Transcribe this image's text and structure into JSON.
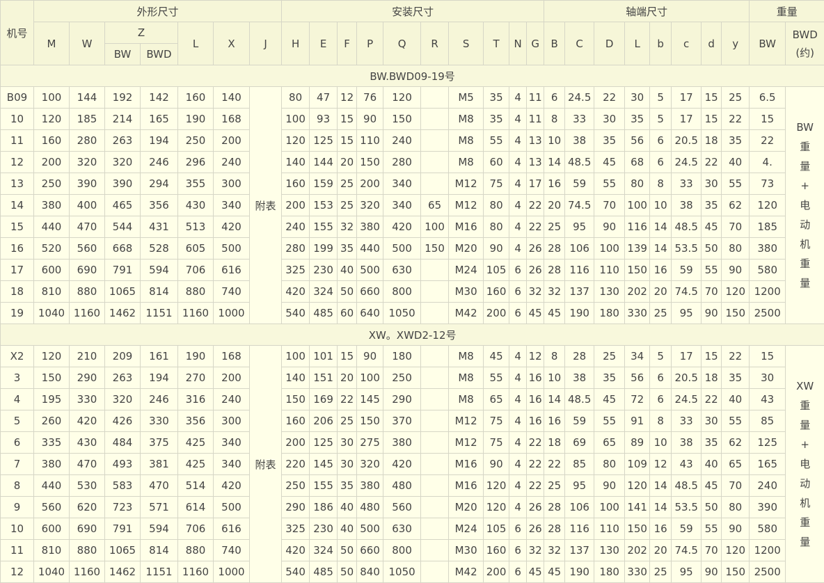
{
  "header": {
    "row1": [
      "机号",
      "外形尺寸",
      "安装尺寸",
      "轴端尺寸",
      "重量"
    ],
    "row2": [
      "M",
      "W",
      "Z",
      "L",
      "X",
      "J",
      "H",
      "E",
      "F",
      "P",
      "Q",
      "R",
      "S",
      "T",
      "N",
      "G",
      "B",
      "C",
      "D",
      "L",
      "b",
      "c",
      "d",
      "y",
      "BW",
      "BWD",
      "(约)"
    ],
    "row3": [
      "BW",
      "BWD"
    ]
  },
  "sections": [
    {
      "title": "BW.BWD09-19号",
      "j": "附表",
      "note": [
        "BW",
        "重",
        "量",
        "+",
        "电",
        "动",
        "机",
        "重",
        "量"
      ],
      "rows": [
        [
          "B09",
          "100",
          "144",
          "192",
          "142",
          "160",
          "140",
          "80",
          "47",
          "12",
          "76",
          "120",
          null,
          "M5",
          "35",
          "4",
          "11",
          "6",
          "24.5",
          "22",
          "30",
          "5",
          "17",
          "15",
          "25",
          "6.5"
        ],
        [
          "10",
          "120",
          "185",
          "214",
          "165",
          "190",
          "168",
          "100",
          "93",
          "15",
          "90",
          "150",
          null,
          "M8",
          "35",
          "4",
          "11",
          "8",
          "33",
          "30",
          "35",
          "5",
          "17",
          "15",
          "22",
          "15"
        ],
        [
          "11",
          "160",
          "280",
          "263",
          "194",
          "250",
          "200",
          "120",
          "125",
          "15",
          "110",
          "240",
          null,
          "M8",
          "55",
          "4",
          "13",
          "10",
          "38",
          "35",
          "56",
          "6",
          "20.5",
          "18",
          "35",
          "22"
        ],
        [
          "12",
          "200",
          "320",
          "320",
          "246",
          "296",
          "240",
          "140",
          "144",
          "20",
          "150",
          "280",
          null,
          "M8",
          "60",
          "4",
          "13",
          "14",
          "48.5",
          "45",
          "68",
          "6",
          "24.5",
          "22",
          "40",
          "4."
        ],
        [
          "13",
          "250",
          "390",
          "390",
          "294",
          "355",
          "300",
          "160",
          "159",
          "25",
          "200",
          "340",
          null,
          "M12",
          "75",
          "4",
          "17",
          "16",
          "59",
          "55",
          "80",
          "8",
          "33",
          "30",
          "55",
          "73"
        ],
        [
          "14",
          "380",
          "400",
          "465",
          "356",
          "430",
          "340",
          "200",
          "153",
          "25",
          "320",
          "340",
          "65",
          "M12",
          "80",
          "4",
          "22",
          "20",
          "74.5",
          "70",
          "100",
          "10",
          "38",
          "35",
          "62",
          "120"
        ],
        [
          "15",
          "440",
          "470",
          "544",
          "431",
          "513",
          "420",
          "240",
          "155",
          "32",
          "380",
          "420",
          "100",
          "M16",
          "80",
          "4",
          "22",
          "25",
          "95",
          "90",
          "116",
          "14",
          "48.5",
          "45",
          "70",
          "185"
        ],
        [
          "16",
          "520",
          "560",
          "668",
          "528",
          "605",
          "500",
          "280",
          "199",
          "35",
          "440",
          "500",
          "150",
          "M20",
          "90",
          "4",
          "26",
          "28",
          "106",
          "100",
          "139",
          "14",
          "53.5",
          "50",
          "80",
          "380"
        ],
        [
          "17",
          "600",
          "690",
          "791",
          "594",
          "706",
          "616",
          "325",
          "230",
          "40",
          "500",
          "630",
          null,
          "M24",
          "105",
          "6",
          "26",
          "28",
          "116",
          "110",
          "150",
          "16",
          "59",
          "55",
          "90",
          "580"
        ],
        [
          "18",
          "810",
          "880",
          "1065",
          "814",
          "880",
          "740",
          "420",
          "324",
          "50",
          "660",
          "800",
          null,
          "M30",
          "160",
          "6",
          "32",
          "32",
          "137",
          "130",
          "202",
          "20",
          "74.5",
          "70",
          "120",
          "1200"
        ],
        [
          "19",
          "1040",
          "1160",
          "1462",
          "1151",
          "1160",
          "1000",
          "540",
          "485",
          "60",
          "640",
          "1050",
          null,
          "M42",
          "200",
          "6",
          "45",
          "45",
          "190",
          "180",
          "330",
          "25",
          "95",
          "90",
          "150",
          "2500"
        ]
      ]
    },
    {
      "title": "XW。XWD2-12号",
      "j": "附表",
      "note": [
        "XW",
        "重",
        "量",
        "+",
        "电",
        "动",
        "机",
        "重",
        "量"
      ],
      "rows": [
        [
          "X2",
          "120",
          "210",
          "209",
          "161",
          "190",
          "168",
          "100",
          "101",
          "15",
          "90",
          "180",
          null,
          "M8",
          "45",
          "4",
          "12",
          "8",
          "28",
          "25",
          "34",
          "5",
          "17",
          "15",
          "22",
          "15"
        ],
        [
          "3",
          "150",
          "290",
          "263",
          "194",
          "270",
          "200",
          "140",
          "151",
          "20",
          "100",
          "250",
          null,
          "M8",
          "55",
          "4",
          "16",
          "10",
          "38",
          "35",
          "56",
          "6",
          "20.5",
          "18",
          "35",
          "30"
        ],
        [
          "4",
          "195",
          "330",
          "320",
          "246",
          "316",
          "240",
          "150",
          "169",
          "22",
          "145",
          "290",
          null,
          "M8",
          "65",
          "4",
          "16",
          "14",
          "48.5",
          "45",
          "72",
          "6",
          "24.5",
          "22",
          "40",
          "43"
        ],
        [
          "5",
          "260",
          "420",
          "426",
          "330",
          "356",
          "300",
          "160",
          "206",
          "25",
          "150",
          "370",
          null,
          "M12",
          "75",
          "4",
          "16",
          "16",
          "59",
          "55",
          "91",
          "8",
          "33",
          "30",
          "55",
          "85"
        ],
        [
          "6",
          "335",
          "430",
          "484",
          "375",
          "425",
          "340",
          "200",
          "125",
          "30",
          "275",
          "380",
          null,
          "M12",
          "75",
          "4",
          "22",
          "18",
          "69",
          "65",
          "89",
          "10",
          "38",
          "35",
          "62",
          "125"
        ],
        [
          "7",
          "380",
          "470",
          "493",
          "381",
          "425",
          "340",
          "220",
          "145",
          "30",
          "320",
          "420",
          null,
          "M16",
          "90",
          "4",
          "22",
          "22",
          "85",
          "80",
          "109",
          "12",
          "43",
          "40",
          "65",
          "165"
        ],
        [
          "8",
          "440",
          "530",
          "583",
          "470",
          "514",
          "420",
          "250",
          "155",
          "35",
          "380",
          "480",
          null,
          "M16",
          "120",
          "4",
          "22",
          "25",
          "95",
          "90",
          "120",
          "14",
          "48.5",
          "45",
          "70",
          "240"
        ],
        [
          "9",
          "560",
          "620",
          "723",
          "571",
          "614",
          "500",
          "290",
          "186",
          "40",
          "480",
          "560",
          null,
          "M20",
          "120",
          "4",
          "26",
          "28",
          "106",
          "100",
          "141",
          "14",
          "53.5",
          "50",
          "80",
          "390"
        ],
        [
          "10",
          "600",
          "690",
          "791",
          "594",
          "706",
          "616",
          "325",
          "230",
          "40",
          "500",
          "630",
          null,
          "M24",
          "105",
          "6",
          "26",
          "28",
          "116",
          "110",
          "150",
          "16",
          "59",
          "55",
          "90",
          "580"
        ],
        [
          "11",
          "810",
          "880",
          "1065",
          "814",
          "880",
          "740",
          "420",
          "324",
          "50",
          "660",
          "800",
          null,
          "M30",
          "160",
          "6",
          "32",
          "32",
          "137",
          "130",
          "202",
          "20",
          "74.5",
          "70",
          "120",
          "1200"
        ],
        [
          "12",
          "1040",
          "1160",
          "1462",
          "1151",
          "1160",
          "1000",
          "540",
          "485",
          "50",
          "840",
          "1050",
          null,
          "M42",
          "200",
          "6",
          "45",
          "45",
          "190",
          "180",
          "330",
          "25",
          "95",
          "90",
          "150",
          "2500"
        ]
      ]
    }
  ]
}
